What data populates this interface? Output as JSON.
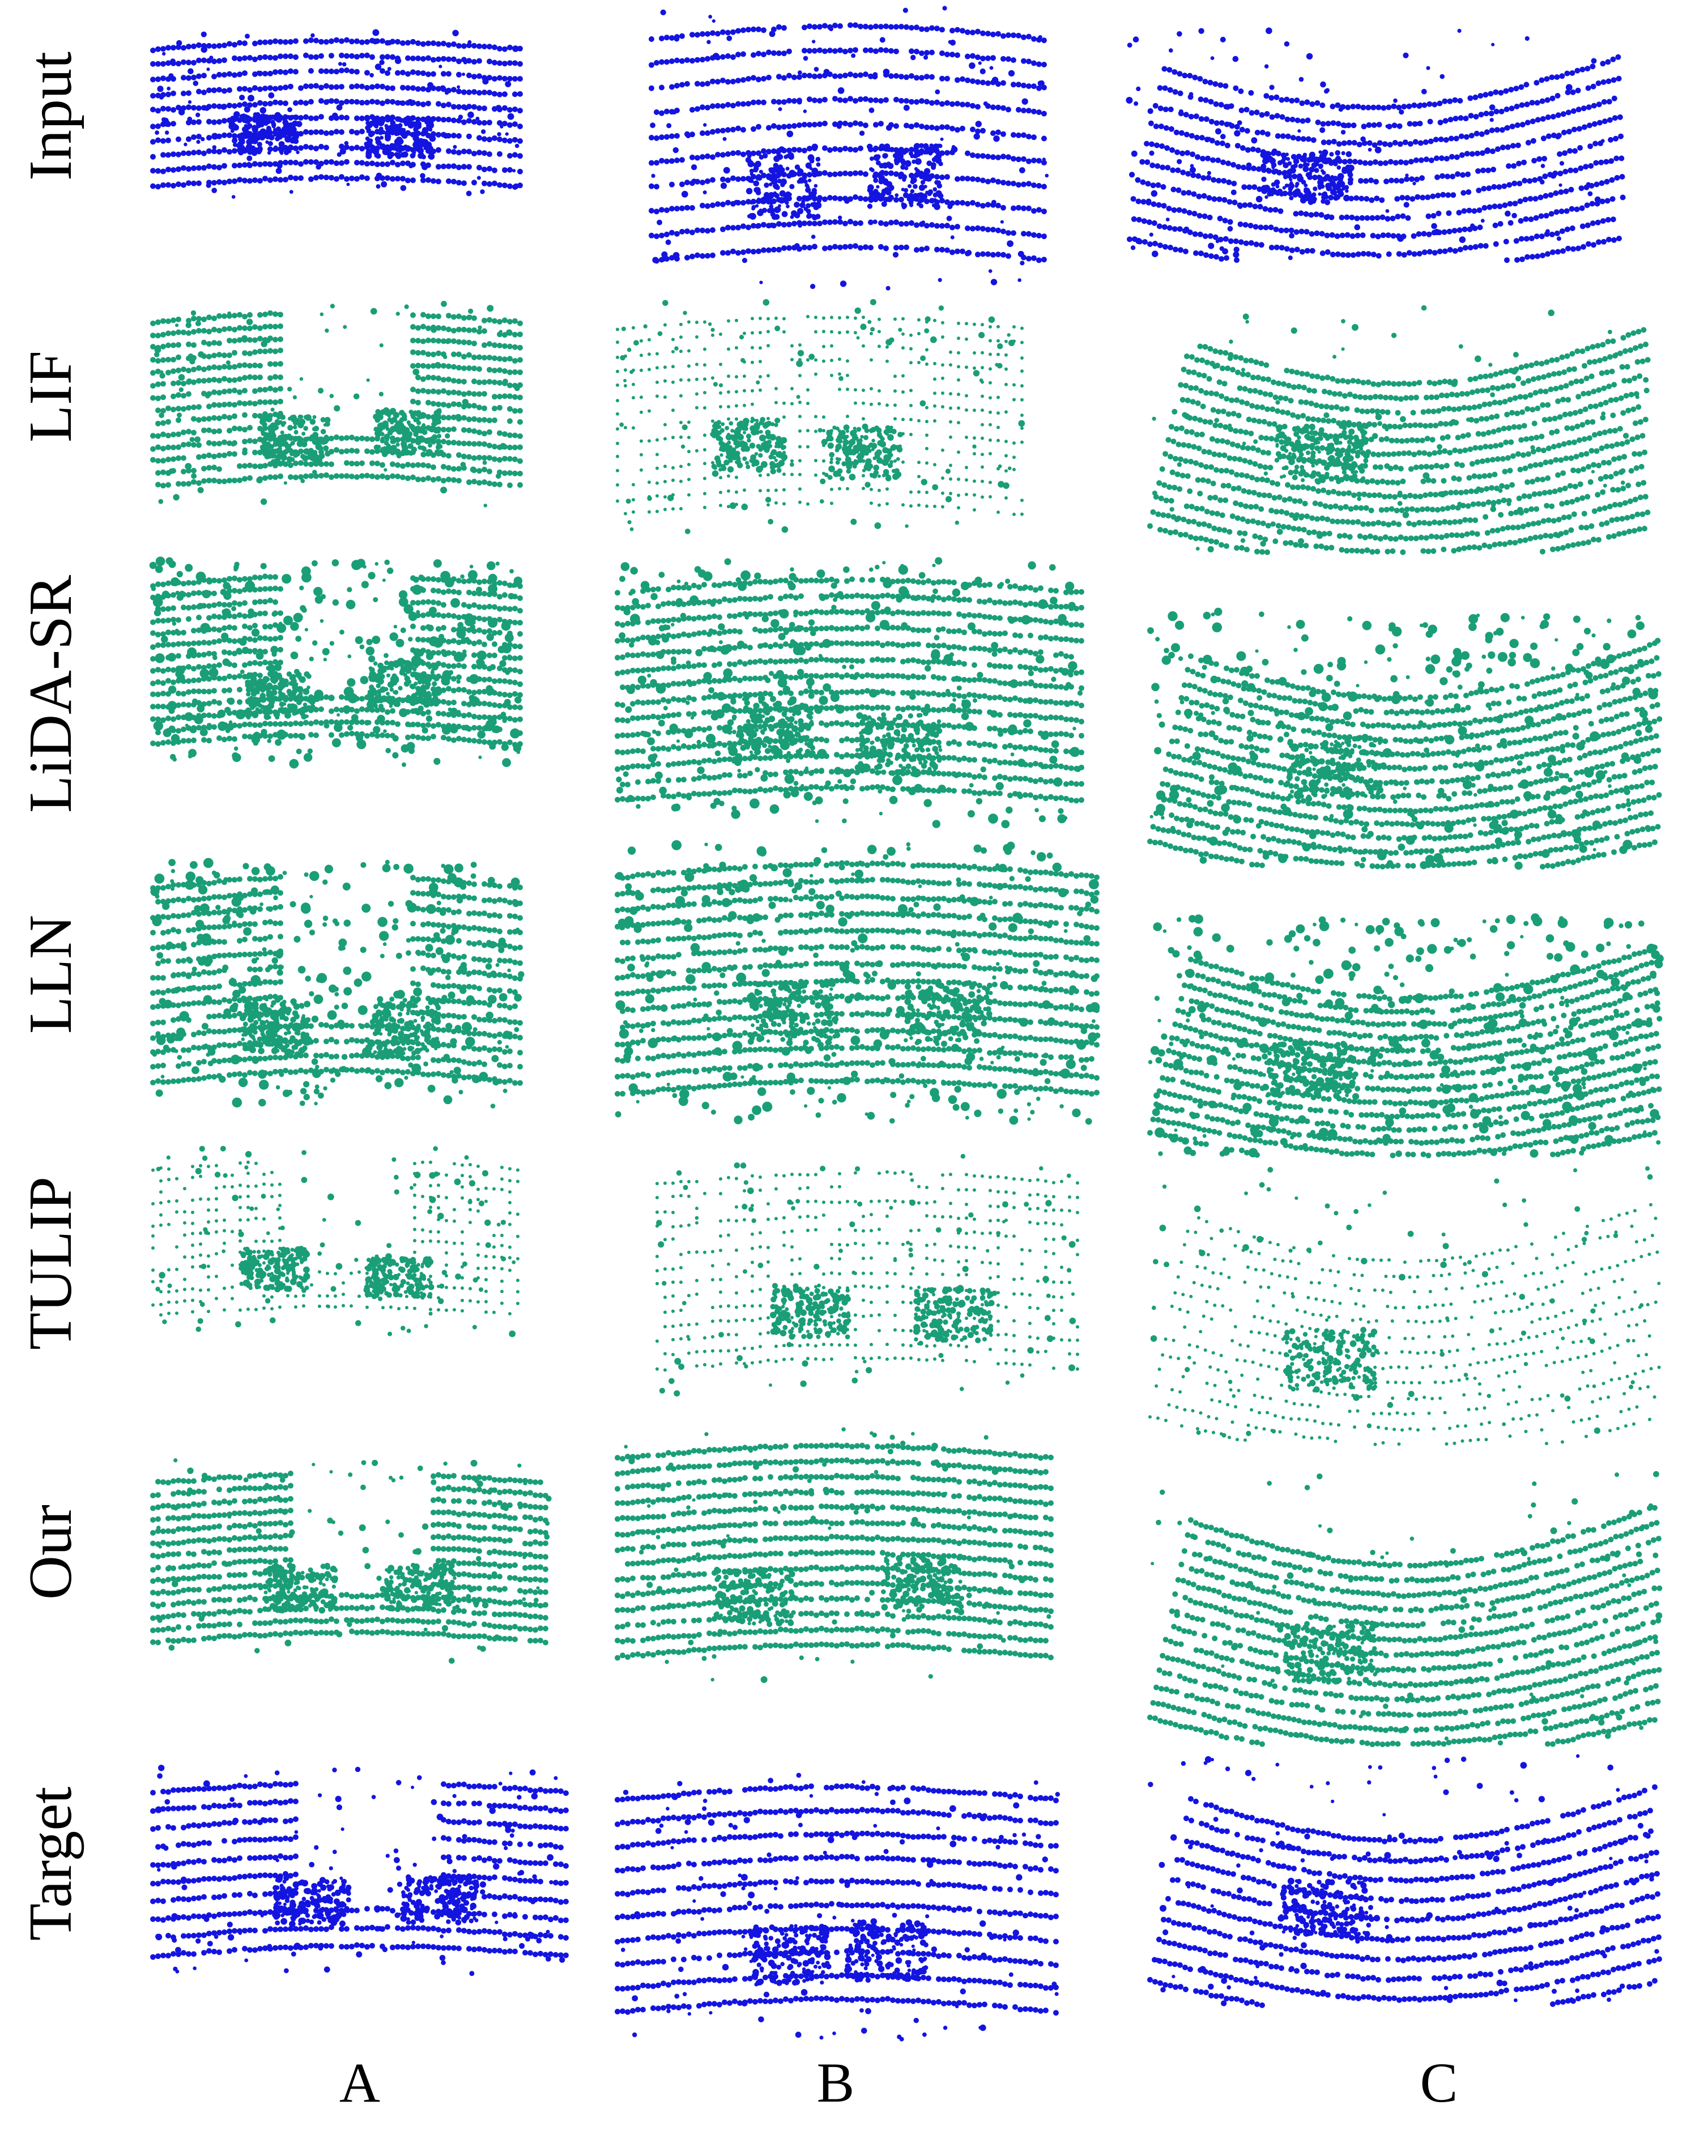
{
  "figure": {
    "row_labels": [
      "Input",
      "LIF",
      "LiDA-SR",
      "LLN",
      "TULIP",
      "Our",
      "Target"
    ],
    "column_labels": [
      "A",
      "B",
      "C"
    ],
    "colors": {
      "input_target": "#1414e0",
      "prediction": "#1a9e77",
      "text": "#000000",
      "background": "#ffffff"
    }
  }
}
